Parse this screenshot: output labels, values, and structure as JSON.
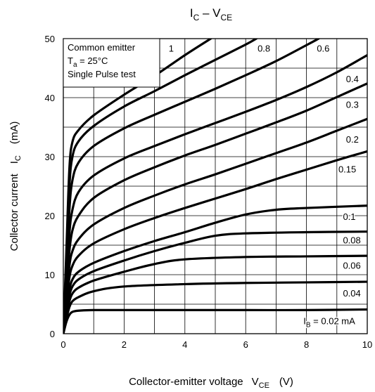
{
  "chart_data": {
    "type": "line",
    "title_main": "I",
    "title_main_sub": "C",
    "title_dash": " – V",
    "title_dash_sub": "CE",
    "xlabel": "Collector-emitter voltage",
    "xlabel_symbol": "V",
    "xlabel_symbol_sub": "CE",
    "xlabel_unit": "(V)",
    "ylabel": "Collector current",
    "ylabel_symbol": "I",
    "ylabel_symbol_sub": "C",
    "ylabel_unit": "(mA)",
    "xlim": [
      0,
      10
    ],
    "ylim": [
      0,
      50
    ],
    "x_ticks": [
      "0",
      "2",
      "4",
      "6",
      "8",
      "10"
    ],
    "y_ticks": [
      "0",
      "10",
      "20",
      "30",
      "40",
      "50"
    ],
    "grid": true,
    "legend_box": {
      "line1": "Common emitter",
      "line2_symbol": "T",
      "line2_sub": "a",
      "line2_rest": " = 25°C",
      "line3": "Single Pulse test",
      "placement": "top-left"
    },
    "series": [
      {
        "name": "I_B = 0.02 mA",
        "label_main": "I",
        "label_sub": "B",
        "label_rest": " = 0.02 mA",
        "x": [
          0,
          0.1,
          0.2,
          0.3,
          0.5,
          1,
          2,
          4,
          6,
          8,
          10
        ],
        "y": [
          0,
          2,
          3.2,
          3.7,
          3.9,
          4.0,
          4.0,
          4.0,
          4.0,
          4.0,
          4.1
        ]
      },
      {
        "name": "0.04",
        "label_main": "0.04",
        "x": [
          0,
          0.1,
          0.2,
          0.3,
          0.5,
          1,
          2,
          4,
          6,
          8,
          10
        ],
        "y": [
          0,
          2.5,
          4.5,
          5.5,
          6.2,
          7.2,
          8.0,
          8.4,
          8.6,
          8.7,
          8.8
        ]
      },
      {
        "name": "0.06",
        "label_main": "0.06",
        "x": [
          0,
          0.1,
          0.2,
          0.3,
          0.5,
          1,
          2,
          3,
          4,
          6,
          8,
          10
        ],
        "y": [
          0,
          3,
          5.5,
          6.8,
          7.8,
          9.0,
          10.5,
          11.8,
          12.6,
          13.0,
          13.1,
          13.2
        ]
      },
      {
        "name": "0.08",
        "label_main": "0.08",
        "x": [
          0,
          0.1,
          0.2,
          0.3,
          0.5,
          1,
          2,
          3,
          4,
          5,
          6,
          8,
          10
        ],
        "y": [
          0,
          3.5,
          6.5,
          8.0,
          9.2,
          10.6,
          12.4,
          14.0,
          15.4,
          16.6,
          17.0,
          17.2,
          17.3
        ]
      },
      {
        "name": "0.1",
        "label_main": "0.1",
        "x": [
          0,
          0.1,
          0.2,
          0.3,
          0.5,
          1,
          2,
          3,
          4,
          5,
          6,
          7,
          8,
          10
        ],
        "y": [
          0,
          4,
          7.5,
          9.2,
          10.5,
          12.0,
          14.0,
          15.7,
          17.2,
          18.8,
          20.2,
          21.0,
          21.3,
          21.7
        ]
      },
      {
        "name": "0.15",
        "label_main": "0.15",
        "x": [
          0,
          0.1,
          0.2,
          0.3,
          0.5,
          1,
          2,
          3,
          4,
          5,
          6,
          7,
          8,
          9,
          10
        ],
        "y": [
          0,
          5,
          9.5,
          11.5,
          13.2,
          15.3,
          17.7,
          19.6,
          21.3,
          22.9,
          24.5,
          26.2,
          27.8,
          29.4,
          30.9
        ]
      },
      {
        "name": "0.2",
        "label_main": "0.2",
        "x": [
          0,
          0.1,
          0.2,
          0.3,
          0.5,
          1,
          2,
          3,
          4,
          5,
          6,
          7,
          8,
          9,
          10
        ],
        "y": [
          0,
          6,
          11.5,
          14.0,
          16.0,
          18.5,
          21.3,
          23.4,
          25.3,
          27.0,
          28.8,
          30.6,
          32.4,
          34.4,
          36.4
        ]
      },
      {
        "name": "0.3",
        "label_main": "0.3",
        "x": [
          0,
          0.1,
          0.2,
          0.3,
          0.5,
          1,
          2,
          3,
          4,
          5,
          6,
          7,
          8,
          9,
          10
        ],
        "y": [
          0,
          7,
          14.0,
          17.5,
          20.0,
          23.0,
          26.0,
          28.2,
          30.2,
          32.0,
          33.9,
          35.8,
          37.8,
          40.1,
          42.4
        ]
      },
      {
        "name": "0.4",
        "label_main": "0.4",
        "x": [
          0,
          0.1,
          0.2,
          0.3,
          0.5,
          1,
          2,
          3,
          4,
          5,
          6,
          7,
          8,
          9,
          10
        ],
        "y": [
          0,
          8,
          17.0,
          21.0,
          24.0,
          26.8,
          29.7,
          31.8,
          33.8,
          35.7,
          37.6,
          39.6,
          41.8,
          44.3,
          47.2
        ]
      },
      {
        "name": "0.6",
        "label_main": "0.6",
        "x": [
          0,
          0.1,
          0.2,
          0.3,
          0.5,
          1,
          2,
          3,
          4,
          5,
          6,
          7,
          8,
          8.4
        ],
        "y": [
          0,
          10,
          21.0,
          26.0,
          29.0,
          31.8,
          34.8,
          37.1,
          39.3,
          41.5,
          43.8,
          46.2,
          48.9,
          50
        ]
      },
      {
        "name": "0.8",
        "label_main": "0.8",
        "x": [
          0,
          0.1,
          0.2,
          0.3,
          0.5,
          1,
          2,
          3,
          4,
          5,
          6,
          6.35
        ],
        "y": [
          0,
          12,
          25.0,
          30.0,
          32.6,
          35.2,
          38.5,
          41.1,
          43.8,
          46.4,
          49.0,
          50
        ]
      },
      {
        "name": "1",
        "label_main": "1",
        "x": [
          0,
          0.1,
          0.2,
          0.3,
          0.5,
          1,
          2,
          3,
          4,
          4.85
        ],
        "y": [
          0,
          14,
          28.0,
          32.5,
          34.5,
          37.0,
          40.5,
          43.7,
          47.2,
          50
        ]
      }
    ]
  }
}
